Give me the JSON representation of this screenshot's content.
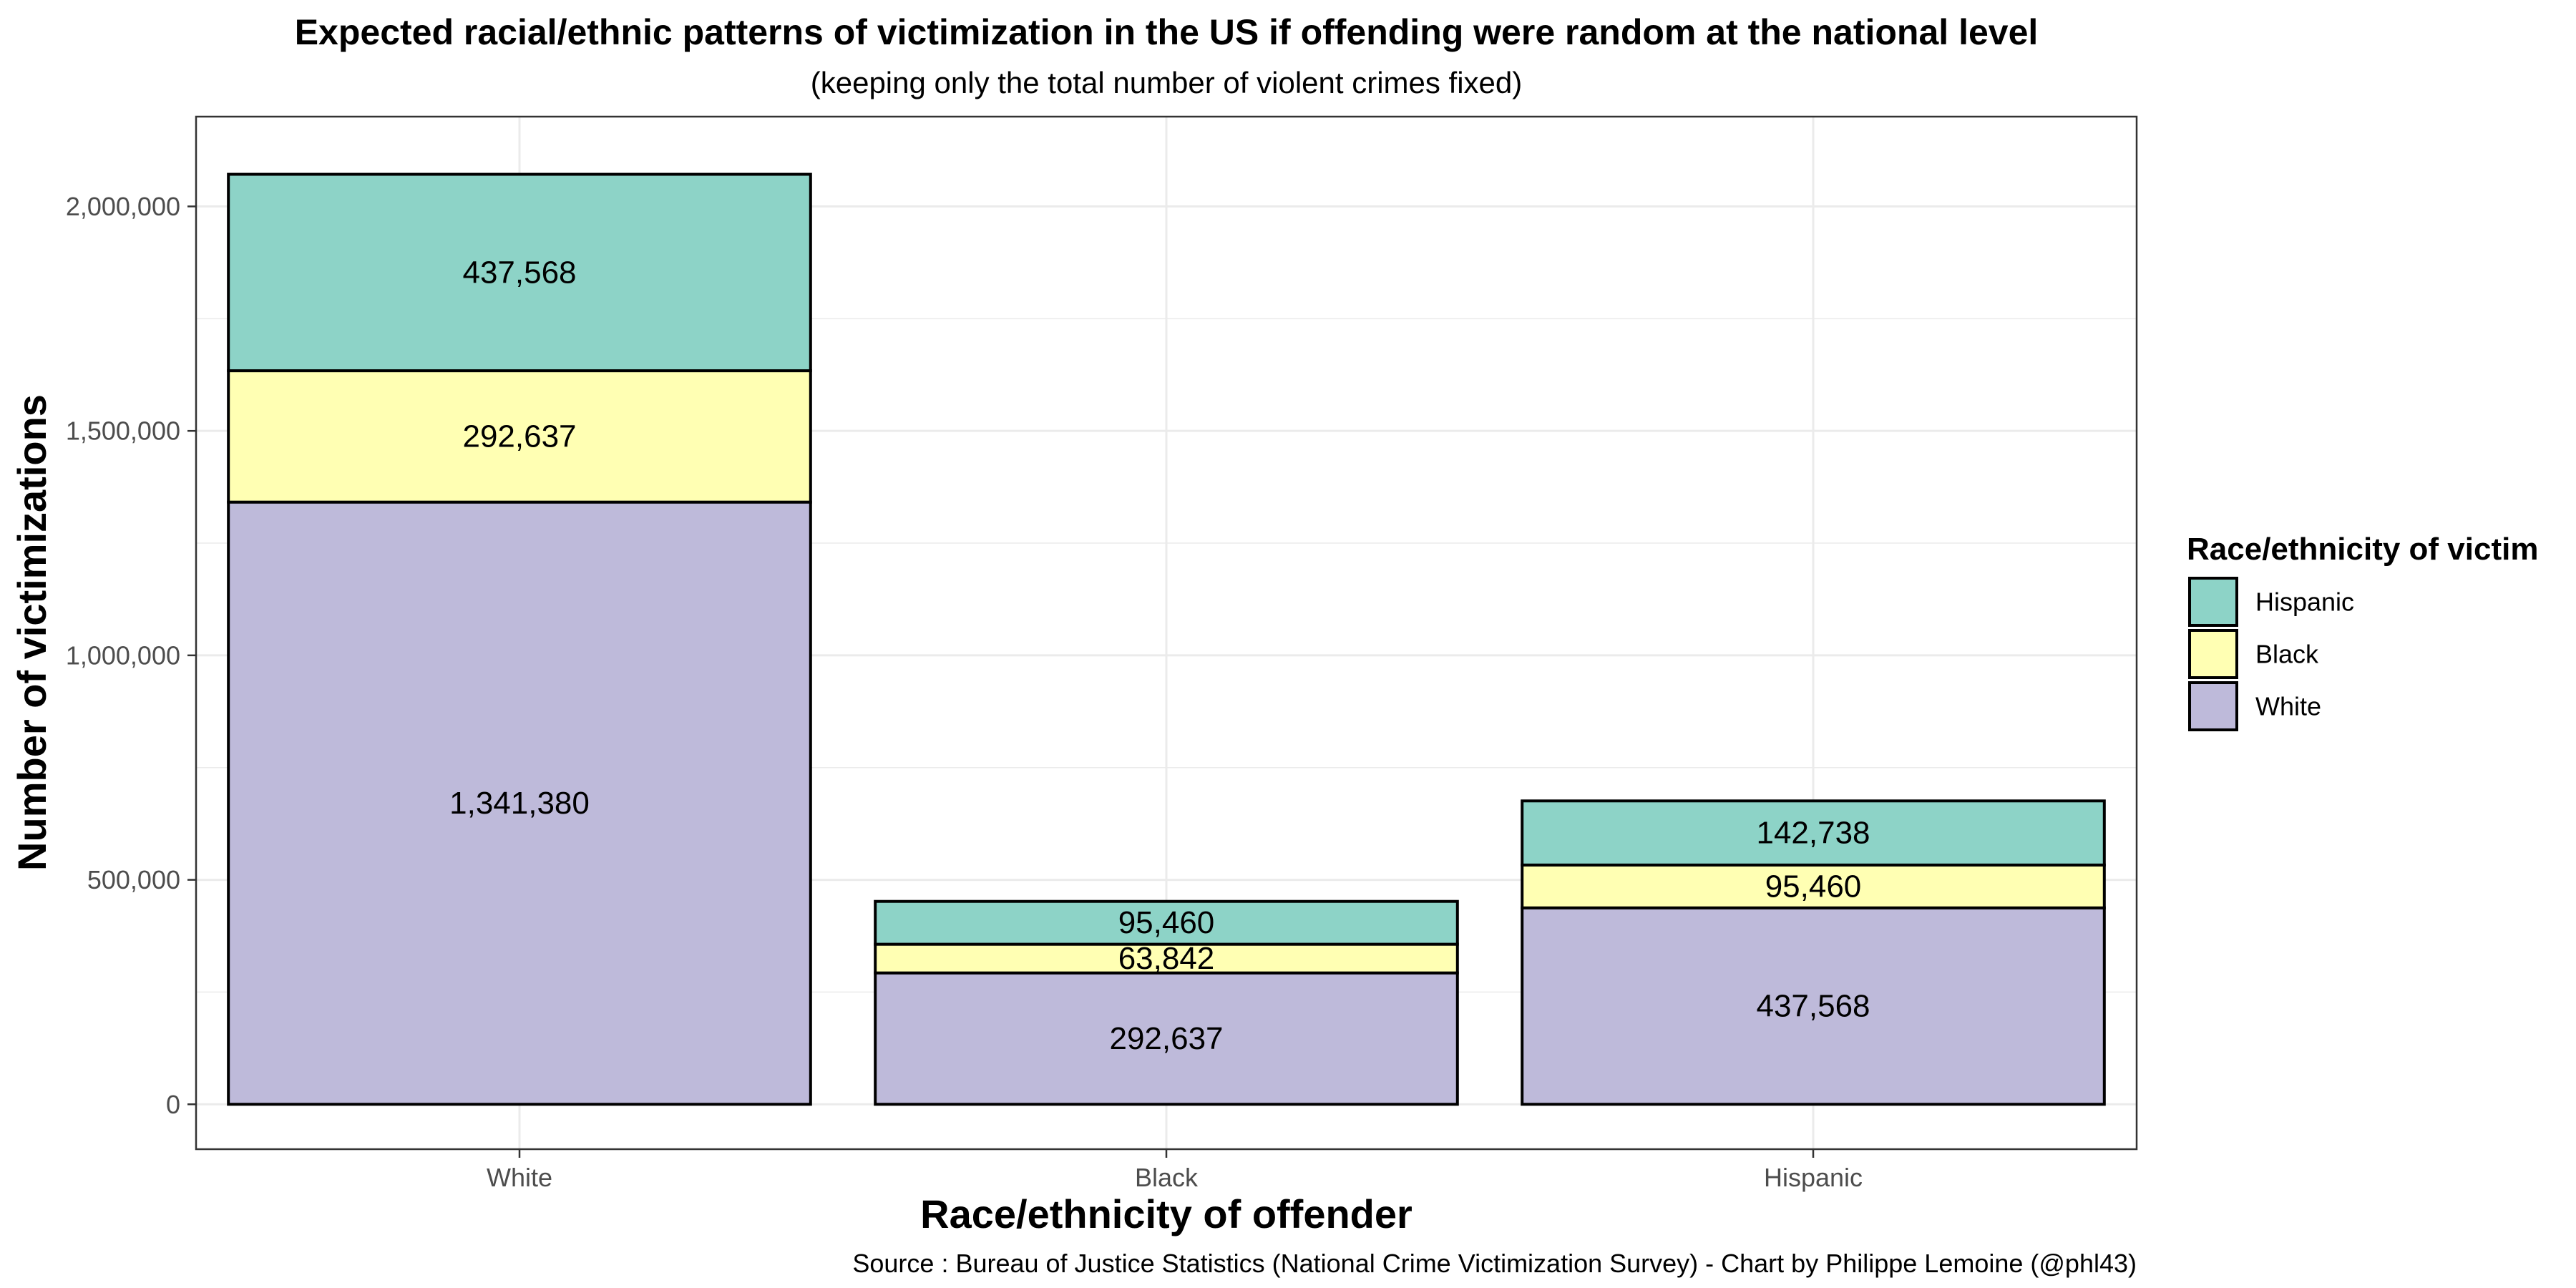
{
  "chart_data": {
    "type": "bar",
    "stacked": true,
    "title": "Expected racial/ethnic patterns of victimization in the US if offending were random at the national level",
    "subtitle": "(keeping only the total number of violent crimes fixed)",
    "xlabel": "Race/ethnicity of offender",
    "ylabel": "Number of victimizations",
    "caption": "Source : Bureau of Justice Statistics (National Crime Victimization Survey) - Chart by Philippe Lemoine (@phl43)",
    "categories": [
      "White",
      "Black",
      "Hispanic"
    ],
    "ylim": [
      -100000,
      2200000
    ],
    "yticks": [
      0,
      500000,
      1000000,
      1500000,
      2000000
    ],
    "ytick_labels": [
      "0",
      "500,000",
      "1,000,000",
      "1,500,000",
      "2,000,000"
    ],
    "grid": true,
    "legend": {
      "title": "Race/ethnicity of victim",
      "position": "right",
      "items": [
        "Hispanic",
        "Black",
        "White"
      ]
    },
    "series": [
      {
        "name": "White",
        "color": "#bebada",
        "values": [
          1341380,
          292637,
          437568
        ],
        "labels": [
          "1,341,380",
          "292,637",
          "437,568"
        ]
      },
      {
        "name": "Black",
        "color": "#ffffb3",
        "values": [
          292637,
          63842,
          95460
        ],
        "labels": [
          "292,637",
          "63,842",
          "95,460"
        ]
      },
      {
        "name": "Hispanic",
        "color": "#8dd3c7",
        "values": [
          437568,
          95460,
          142738
        ],
        "labels": [
          "437,568",
          "95,460",
          "142,738"
        ]
      }
    ]
  }
}
